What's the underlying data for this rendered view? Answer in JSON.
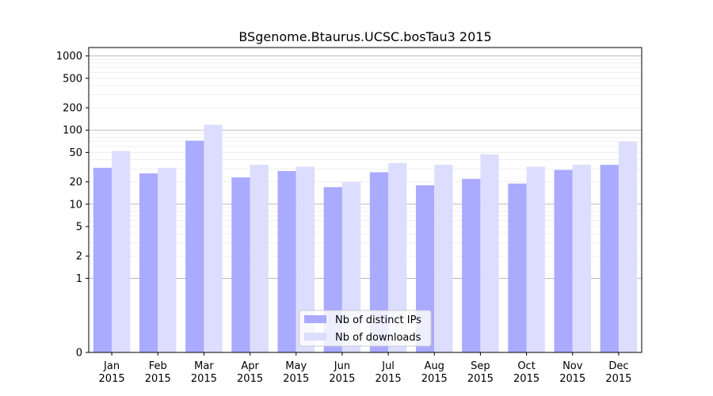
{
  "chart_data": {
    "type": "bar",
    "title": "BSgenome.Btaurus.UCSC.bosTau3 2015",
    "xlabel": "",
    "ylabel": "",
    "y_scale": "symlog",
    "grid": "horizontal",
    "legend_position": "bottom-center",
    "categories": [
      "Jan\n2015",
      "Feb\n2015",
      "Mar\n2015",
      "Apr\n2015",
      "May\n2015",
      "Jun\n2015",
      "Jul\n2015",
      "Aug\n2015",
      "Sep\n2015",
      "Oct\n2015",
      "Nov\n2015",
      "Dec\n2015"
    ],
    "y_ticks": [
      0,
      1,
      2,
      5,
      10,
      20,
      50,
      100,
      200,
      500,
      1000
    ],
    "ylim": [
      0,
      1300
    ],
    "series": [
      {
        "name": "Nb of distinct IPs",
        "color": "#aaaaff",
        "values": [
          31,
          26,
          72,
          23,
          28,
          17,
          27,
          18,
          22,
          19,
          29,
          34
        ]
      },
      {
        "name": "Nb of downloads",
        "color": "#ddddff",
        "values": [
          52,
          31,
          118,
          34,
          32,
          20,
          36,
          34,
          47,
          32,
          34,
          70
        ]
      }
    ]
  }
}
